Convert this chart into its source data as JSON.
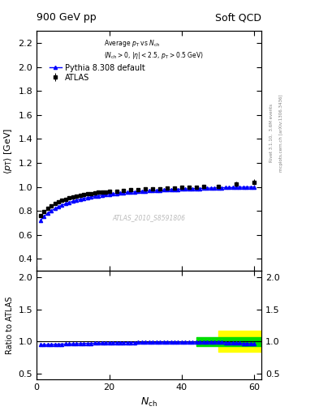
{
  "title_left": "900 GeV pp",
  "title_right": "Soft QCD",
  "label1": "ATLAS",
  "label2": "Pythia 8.308 default",
  "watermark": "ATLAS_2010_S8591806",
  "rivet_label": "Rivet 3.1.10,  3.6M events",
  "arxiv_label": "mcplots.cern.ch [arXiv:1306.3436]",
  "ylabel_main": "\\langle p_{T} \\rangle [GeV]",
  "ylabel_ratio": "Ratio to ATLAS",
  "xlim": [
    0,
    62
  ],
  "ylim_main": [
    0.3,
    2.3
  ],
  "ylim_ratio": [
    0.4,
    2.1
  ],
  "yticks_main": [
    0.4,
    0.6,
    0.8,
    1.0,
    1.2,
    1.4,
    1.6,
    1.8,
    2.0,
    2.2
  ],
  "yticks_ratio": [
    0.5,
    1.0,
    1.5,
    2.0
  ],
  "atlas_x": [
    1,
    2,
    3,
    4,
    5,
    6,
    7,
    8,
    9,
    10,
    11,
    12,
    13,
    14,
    15,
    16,
    17,
    18,
    19,
    20,
    22,
    24,
    26,
    28,
    30,
    32,
    34,
    36,
    38,
    40,
    42,
    44,
    46,
    50,
    55,
    60
  ],
  "atlas_y": [
    0.762,
    0.796,
    0.822,
    0.843,
    0.86,
    0.875,
    0.888,
    0.899,
    0.909,
    0.917,
    0.925,
    0.931,
    0.937,
    0.942,
    0.946,
    0.95,
    0.954,
    0.957,
    0.96,
    0.962,
    0.966,
    0.971,
    0.975,
    0.979,
    0.982,
    0.985,
    0.987,
    0.99,
    0.993,
    0.995,
    0.998,
    1.0,
    1.002,
    1.005,
    1.025,
    1.04
  ],
  "atlas_yerr": [
    0.012,
    0.01,
    0.01,
    0.01,
    0.009,
    0.008,
    0.008,
    0.008,
    0.008,
    0.007,
    0.007,
    0.007,
    0.007,
    0.007,
    0.007,
    0.007,
    0.007,
    0.007,
    0.007,
    0.007,
    0.007,
    0.007,
    0.007,
    0.007,
    0.007,
    0.007,
    0.007,
    0.007,
    0.008,
    0.008,
    0.008,
    0.009,
    0.009,
    0.012,
    0.018,
    0.025
  ],
  "mc_x": [
    1,
    2,
    3,
    4,
    5,
    6,
    7,
    8,
    9,
    10,
    11,
    12,
    13,
    14,
    15,
    16,
    17,
    18,
    19,
    20,
    21,
    22,
    23,
    24,
    25,
    26,
    27,
    28,
    29,
    30,
    31,
    32,
    33,
    34,
    35,
    36,
    37,
    38,
    39,
    40,
    41,
    42,
    43,
    44,
    45,
    46,
    47,
    48,
    49,
    50,
    51,
    52,
    53,
    54,
    55,
    56,
    57,
    58,
    59,
    60
  ],
  "mc_y": [
    0.72,
    0.752,
    0.778,
    0.8,
    0.818,
    0.834,
    0.848,
    0.86,
    0.871,
    0.88,
    0.889,
    0.897,
    0.904,
    0.91,
    0.916,
    0.921,
    0.926,
    0.931,
    0.935,
    0.939,
    0.942,
    0.945,
    0.948,
    0.951,
    0.954,
    0.956,
    0.959,
    0.961,
    0.963,
    0.965,
    0.967,
    0.969,
    0.97,
    0.972,
    0.974,
    0.975,
    0.977,
    0.978,
    0.98,
    0.981,
    0.982,
    0.984,
    0.985,
    0.986,
    0.987,
    0.988,
    0.989,
    0.99,
    0.991,
    0.992,
    0.993,
    0.994,
    0.995,
    0.995,
    0.996,
    0.997,
    0.997,
    0.998,
    0.998,
    0.999
  ],
  "green_band_x1": 44,
  "green_band_x2": 62,
  "green_band_ylow": 0.93,
  "green_band_yhigh": 1.07,
  "yellow_band_x1": 50,
  "yellow_band_x2": 62,
  "yellow_band_ylow": 0.83,
  "yellow_band_yhigh": 1.17,
  "color_atlas": "#000000",
  "color_mc": "#0000ff",
  "color_green": "#00dd00",
  "color_yellow": "#ffff00",
  "marker_atlas": "s",
  "marker_mc": "^",
  "marker_size_atlas": 3.5,
  "marker_size_mc": 3.0
}
